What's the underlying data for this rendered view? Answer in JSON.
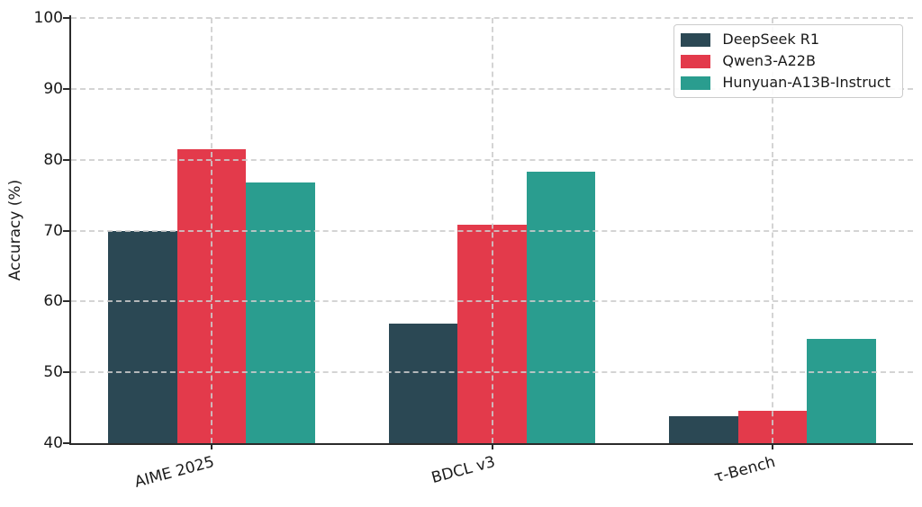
{
  "chart_data": {
    "type": "bar",
    "title": "",
    "categories": [
      "AIME 2025",
      "BDCL v3",
      "τ-Bench"
    ],
    "series": [
      {
        "name": "DeepSeek R1",
        "color": "#2b4854",
        "values": [
          70.0,
          56.9,
          43.8
        ]
      },
      {
        "name": "Qwen3-A22B",
        "color": "#e33a4b",
        "values": [
          81.5,
          70.8,
          44.6
        ]
      },
      {
        "name": "Hunyuan-A13B-Instruct",
        "color": "#2a9d8f",
        "values": [
          76.8,
          78.3,
          54.7
        ]
      }
    ],
    "xlabel": "",
    "ylabel": "Accuracy (%)",
    "ylim": [
      40,
      100
    ],
    "yticks": [
      40,
      50,
      60,
      70,
      80,
      90,
      100
    ],
    "grid": true,
    "grid_style": "dashed",
    "legend_position": "upper right",
    "background_color": "#ffffff",
    "spine_color": "#2b2b2b",
    "gridline_color": "#cccccc"
  }
}
